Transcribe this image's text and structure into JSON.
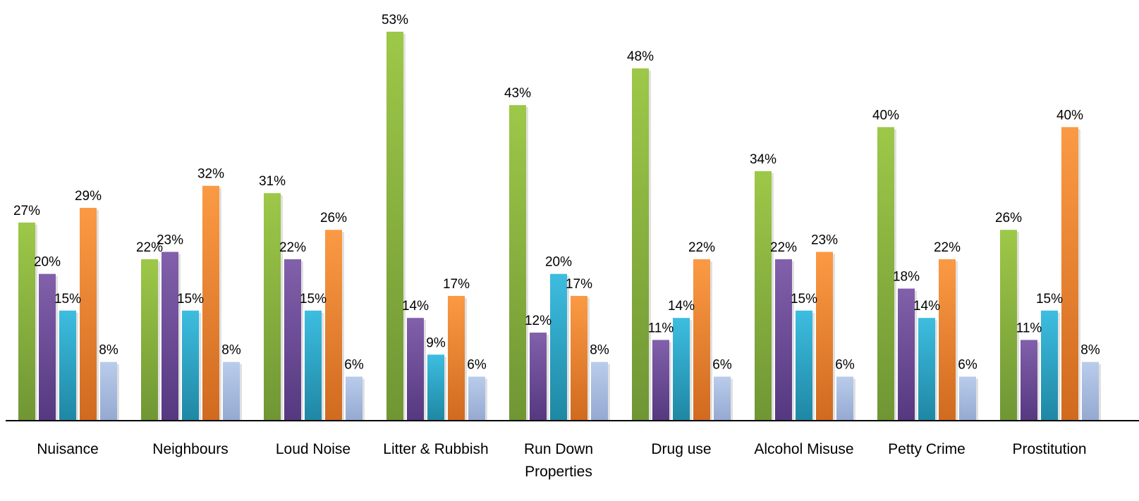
{
  "chart_data": {
    "type": "bar",
    "categories": [
      "Nuisance",
      "Neighbours",
      "Loud Noise",
      "Litter & Rubbish",
      "Run Down Properties",
      "Drug use",
      "Alcohol Misuse",
      "Petty Crime",
      "Prostitution"
    ],
    "category_lines": [
      [
        "Nuisance"
      ],
      [
        "Neighbours"
      ],
      [
        "Loud Noise"
      ],
      [
        "Litter & Rubbish"
      ],
      [
        "Run Down",
        "Properties"
      ],
      [
        "Drug use"
      ],
      [
        "Alcohol Misuse"
      ],
      [
        "Petty Crime"
      ],
      [
        "Prostitution"
      ]
    ],
    "series": [
      {
        "values": [
          27,
          22,
          31,
          53,
          43,
          48,
          34,
          40,
          26
        ],
        "color": "#8ab53e",
        "gradient": [
          "#9dc848",
          "#6f9634"
        ]
      },
      {
        "values": [
          20,
          23,
          22,
          14,
          12,
          11,
          22,
          18,
          11
        ],
        "color": "#6f4a97",
        "gradient": [
          "#8260ab",
          "#553880"
        ]
      },
      {
        "values": [
          15,
          15,
          15,
          9,
          20,
          14,
          15,
          14,
          15
        ],
        "color": "#2aa8c9",
        "gradient": [
          "#3dbde0",
          "#1f87a3"
        ]
      },
      {
        "values": [
          29,
          32,
          26,
          17,
          17,
          22,
          23,
          22,
          40
        ],
        "color": "#f2892f",
        "gradient": [
          "#fb9a44",
          "#d06a1f"
        ]
      },
      {
        "values": [
          8,
          8,
          6,
          6,
          8,
          6,
          6,
          6,
          8
        ],
        "color": "#a9bde0",
        "gradient": [
          "#b9cceb",
          "#95a9d1"
        ]
      }
    ],
    "value_suffix": "%",
    "title": "",
    "xlabel": "",
    "ylabel": "",
    "ylim": [
      0,
      53
    ],
    "grid": false,
    "legend": "none"
  }
}
